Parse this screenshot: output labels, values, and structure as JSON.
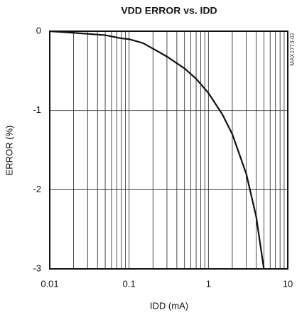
{
  "chart_data": {
    "type": "line",
    "title": "VDD ERROR vs. IDD",
    "x_label": "IDD (mA)",
    "y_label": "ERROR (%)",
    "annotation": "MAX1773-02",
    "x_scale": "log",
    "minor_grid": true,
    "grid": true,
    "xlim": [
      0.01,
      10
    ],
    "xticks": [
      0.01,
      0.1,
      1,
      10
    ],
    "ylim": [
      -3,
      0
    ],
    "yticks": [
      0,
      -1,
      -2,
      -3
    ],
    "series": [
      {
        "color": "#111111",
        "x": [
          0.01,
          0.02,
          0.05,
          0.08,
          0.1,
          0.15,
          0.2,
          0.3,
          0.5,
          0.7,
          1.0,
          1.5,
          2,
          3,
          4,
          5
        ],
        "values": [
          0,
          -0.02,
          -0.05,
          -0.09,
          -0.1,
          -0.15,
          -0.22,
          -0.32,
          -0.47,
          -0.6,
          -0.78,
          -1.05,
          -1.3,
          -1.8,
          -2.34,
          -3.0
        ]
      }
    ]
  }
}
